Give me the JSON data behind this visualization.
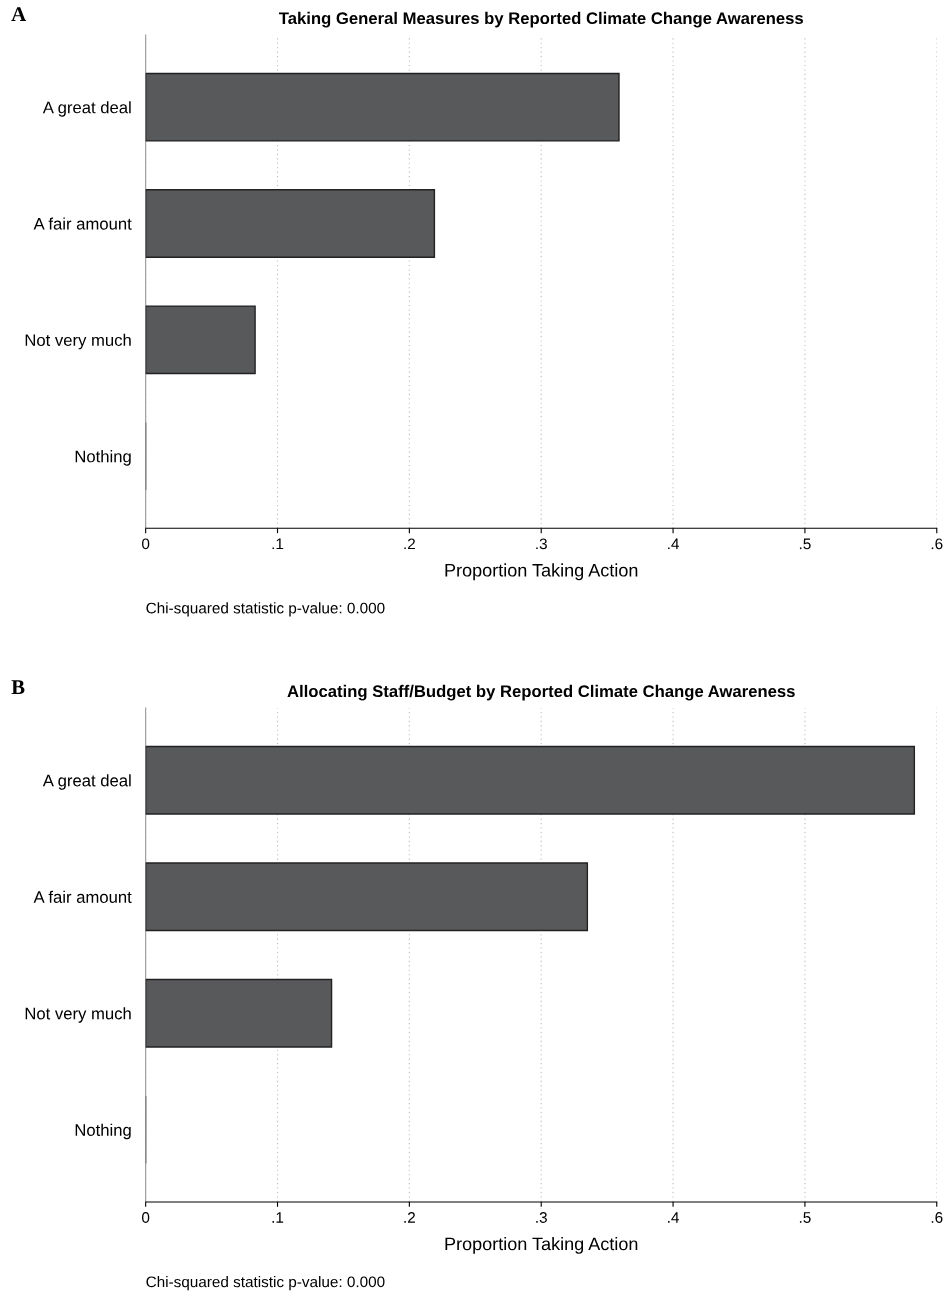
{
  "chart_data": [
    {
      "type": "bar",
      "orientation": "horizontal",
      "title": "Taking General Measures by Reported Climate Change Awareness",
      "xlabel": "Proportion Taking Action",
      "categories": [
        "A great deal",
        "A fair amount",
        "Not very much",
        "Nothing"
      ],
      "values": [
        0.359,
        0.219,
        0.083,
        0
      ],
      "color": "#58595b",
      "xlim": [
        0,
        0.6
      ],
      "xticks": [
        {
          "value": 0,
          "label": "0"
        },
        {
          "value": 0.1,
          "label": ".1"
        },
        {
          "value": 0.2,
          "label": ".2"
        },
        {
          "value": 0.3,
          "label": ".3"
        },
        {
          "value": 0.4,
          "label": ".4"
        },
        {
          "value": 0.5,
          "label": ".5"
        },
        {
          "value": 0.6,
          "label": ".6"
        }
      ],
      "grid": "x",
      "annotations": [
        "A",
        "Chi-squared statistic p-value: 0.000"
      ]
    },
    {
      "type": "bar",
      "orientation": "horizontal",
      "title": "Allocating Staff/Budget by Reported Climate Change Awareness",
      "xlabel": "Proportion Taking Action",
      "categories": [
        "A great deal",
        "A fair amount",
        "Not very much",
        "Nothing"
      ],
      "values": [
        0.583,
        0.335,
        0.141,
        0
      ],
      "color": "#58595b",
      "xlim": [
        0,
        0.6
      ],
      "xticks": [
        {
          "value": 0,
          "label": "0"
        },
        {
          "value": 0.1,
          "label": ".1"
        },
        {
          "value": 0.2,
          "label": ".2"
        },
        {
          "value": 0.3,
          "label": ".3"
        },
        {
          "value": 0.4,
          "label": ".4"
        },
        {
          "value": 0.5,
          "label": ".5"
        },
        {
          "value": 0.6,
          "label": ".6"
        }
      ],
      "grid": "x",
      "annotations": [
        "B",
        "Chi-squared statistic p-value: 0.000"
      ]
    }
  ]
}
